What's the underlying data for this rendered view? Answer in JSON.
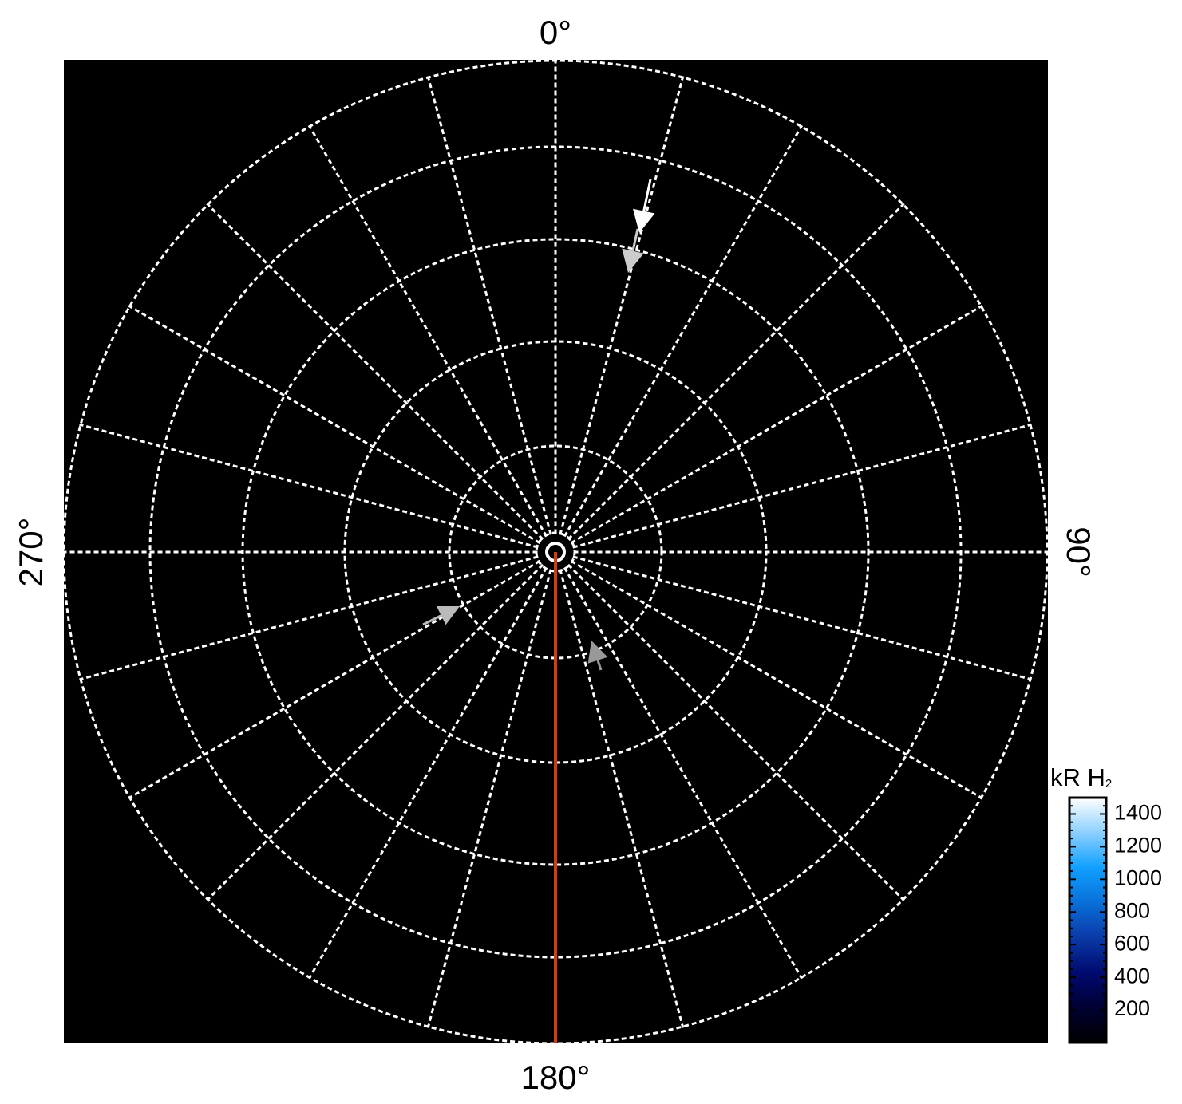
{
  "chart_data": {
    "type": "polar",
    "angular_labels": [
      {
        "angle": 0,
        "text": "0°"
      },
      {
        "angle": 90,
        "text": "90°"
      },
      {
        "angle": 180,
        "text": "180°"
      },
      {
        "angle": 270,
        "text": "270°"
      }
    ],
    "angular_grid_step_deg": 15,
    "radial_rings": 5,
    "grid": true,
    "grid_style": "dotted white",
    "background": "#000000",
    "highlight_meridian": {
      "angle": 180,
      "color": "#d63a10"
    },
    "colorbar": {
      "title": "kR H",
      "title_subscript": "2",
      "ticks": [
        200,
        400,
        600,
        800,
        1000,
        1200,
        1400
      ],
      "range": [
        0,
        1500
      ],
      "colors": [
        "#000000",
        "#000033",
        "#000a6e",
        "#0a3aa8",
        "#0a6fd8",
        "#10a0ff",
        "#8cd0ff",
        "#ffffff"
      ],
      "placement": "bottom-right"
    }
  }
}
